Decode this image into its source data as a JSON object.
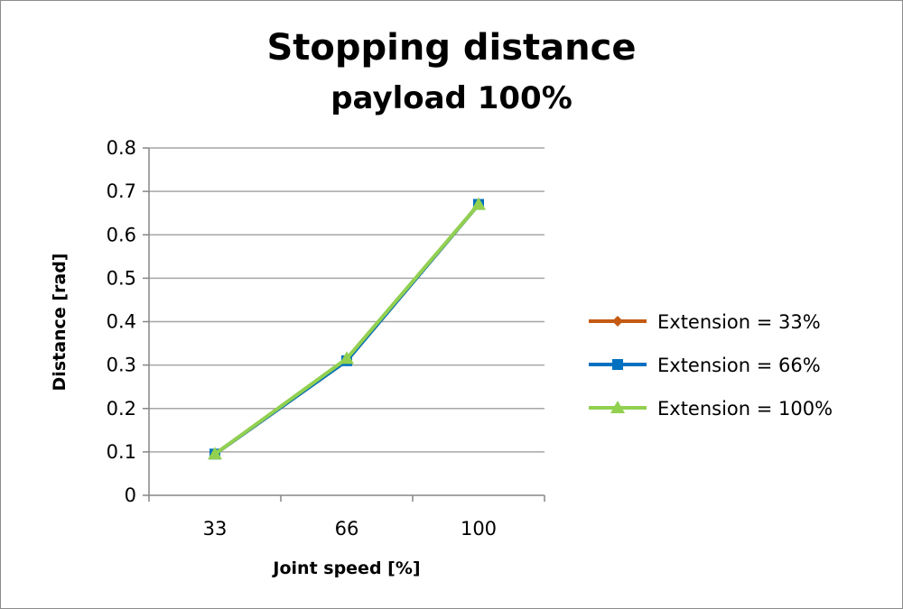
{
  "chart_data": {
    "type": "line",
    "title": "Stopping distance",
    "subtitle": "payload 100%",
    "xlabel": "Joint speed [%]",
    "ylabel": "Distance [rad]",
    "categories": [
      "33",
      "66",
      "100"
    ],
    "ylim": [
      0,
      0.8
    ],
    "yticks": [
      "0",
      "0.1",
      "0.2",
      "0.3",
      "0.4",
      "0.5",
      "0.6",
      "0.7",
      "0.8"
    ],
    "grid": true,
    "legend_position": "right",
    "series": [
      {
        "name": "Extension = 33%",
        "values": [
          0.095,
          0.31,
          0.67
        ],
        "color": "#c55a11",
        "marker": "diamond"
      },
      {
        "name": "Extension = 66%",
        "values": [
          0.095,
          0.31,
          0.67
        ],
        "color": "#0070c0",
        "marker": "square"
      },
      {
        "name": "Extension = 100%",
        "values": [
          0.095,
          0.315,
          0.67
        ],
        "color": "#92d050",
        "marker": "triangle"
      }
    ]
  }
}
